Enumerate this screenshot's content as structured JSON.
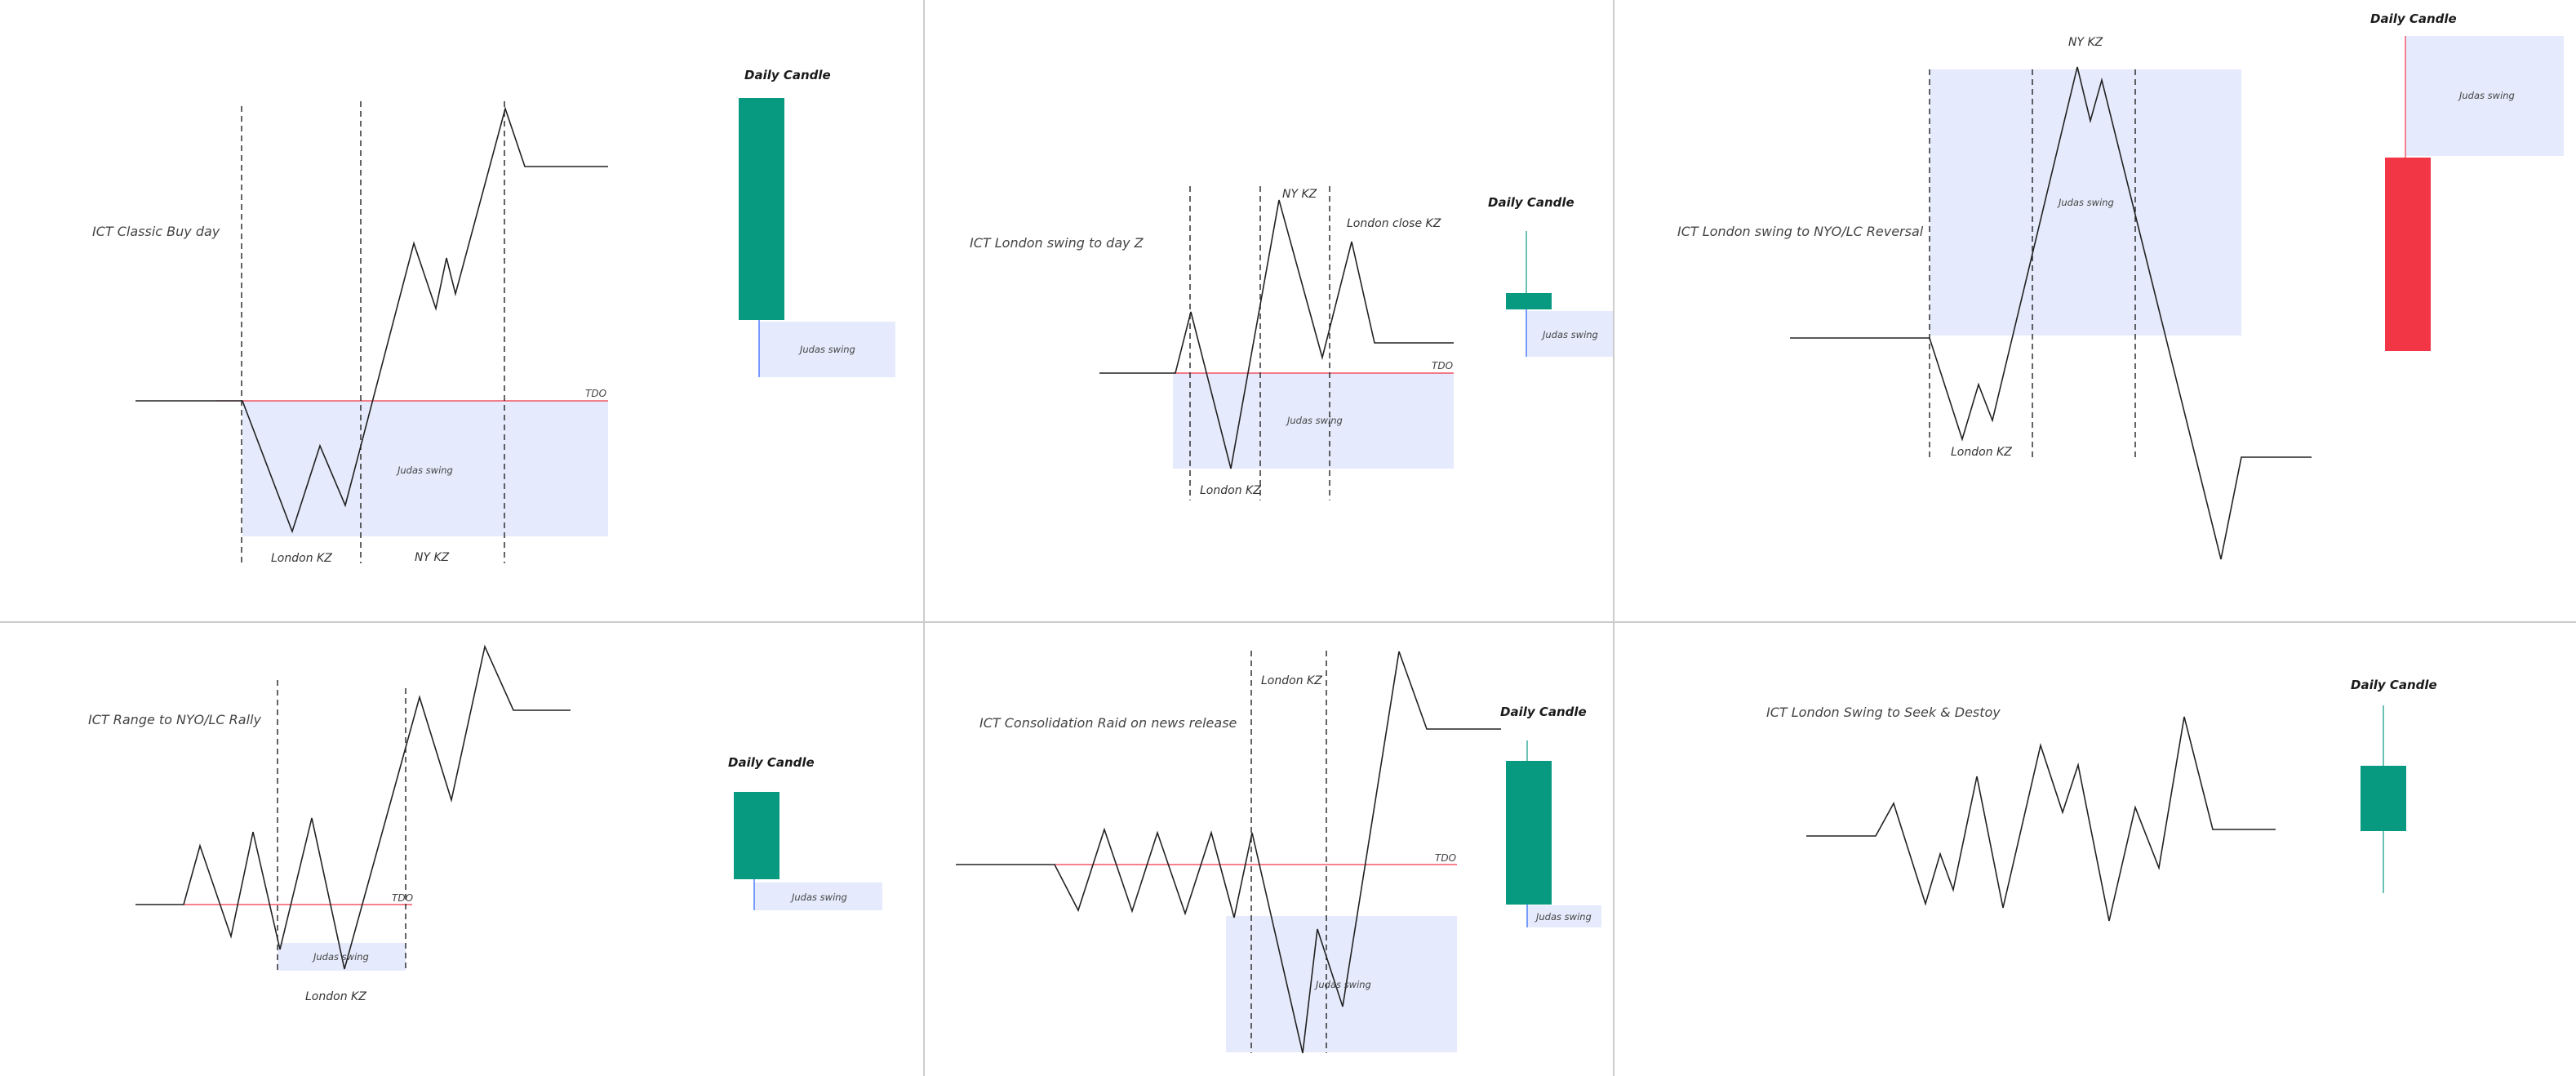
{
  "colors": {
    "background": "#ffffff",
    "divider": "#cccccc",
    "price_line": "#222222",
    "tdo_line": "#f23645",
    "judas_box": "#e5ebfc",
    "bull_candle": "#089981",
    "bear_candle": "#f23645",
    "wick_teal": "#089981",
    "wick_blue": "#2962ff",
    "dashed": "#222222"
  },
  "panels": [
    {
      "id": "classic-buy-day",
      "title": "ICT Classic Buy day",
      "tdo_label": "TDO",
      "judas_label": "Judas swing",
      "killzones": [
        "London KZ",
        "NY KZ"
      ],
      "daily_candle": {
        "label": "Daily Candle",
        "judas_label": "Judas swing",
        "direction": "bull"
      }
    },
    {
      "id": "london-swing-day-z",
      "title": "ICT London swing to day Z",
      "tdo_label": "TDO",
      "judas_label": "Judas swing",
      "killzones": [
        "London KZ",
        "NY KZ",
        "London close KZ"
      ],
      "daily_candle": {
        "label": "Daily Candle",
        "judas_label": "Judas swing",
        "direction": "bull"
      }
    },
    {
      "id": "london-swing-nyo-reversal",
      "title": "ICT London swing to NYO/LC Reversal",
      "judas_label": "Judas swing",
      "killzones": [
        "London KZ",
        "NY KZ"
      ],
      "daily_candle": {
        "label": "Daily Candle",
        "judas_label": "Judas swing",
        "direction": "bear"
      }
    },
    {
      "id": "range-nyo-rally",
      "title": "ICT Range to NYO/LC Rally",
      "tdo_label": "TDO",
      "judas_label": "Judas swing",
      "killzones": [
        "London KZ"
      ],
      "daily_candle": {
        "label": "Daily Candle",
        "judas_label": "Judas swing",
        "direction": "bull"
      }
    },
    {
      "id": "consolidation-raid-news",
      "title": "ICT Consolidation Raid on news release",
      "tdo_label": "TDO",
      "judas_label": "Judas swing",
      "killzones": [
        "London KZ"
      ],
      "daily_candle": {
        "label": "Daily Candle",
        "judas_label": "Judas swing",
        "direction": "bull"
      }
    },
    {
      "id": "london-swing-seek-destroy",
      "title": "ICT London Swing to Seek & Destoy",
      "daily_candle": {
        "label": "Daily Candle",
        "direction": "bull"
      }
    }
  ]
}
